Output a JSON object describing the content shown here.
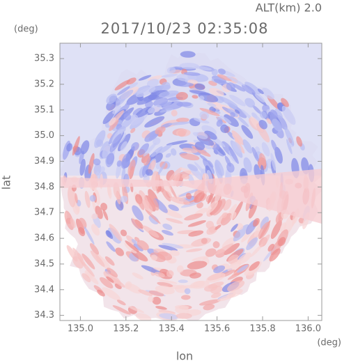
{
  "chart_data": {
    "type": "radar-map",
    "altitude_label": "ALT(km) 2.0",
    "title": "2017/10/23 02:35:08",
    "y_unit": "(deg)",
    "x_unit": "(deg)",
    "xlabel": "lon",
    "ylabel": "lat",
    "xlim": [
      134.91,
      136.06
    ],
    "ylim": [
      34.28,
      35.36
    ],
    "xticks": [
      {
        "value": 135,
        "label": "135.0"
      },
      135.2,
      135.4,
      135.6,
      135.8,
      {
        "value": 136,
        "label": "136.0"
      }
    ],
    "yticks": [
      34.3,
      34.4,
      34.5,
      34.6,
      34.7,
      34.8,
      34.9,
      {
        "value": 35,
        "label": "35.0"
      },
      35.1,
      35.2,
      35.3
    ]
  }
}
